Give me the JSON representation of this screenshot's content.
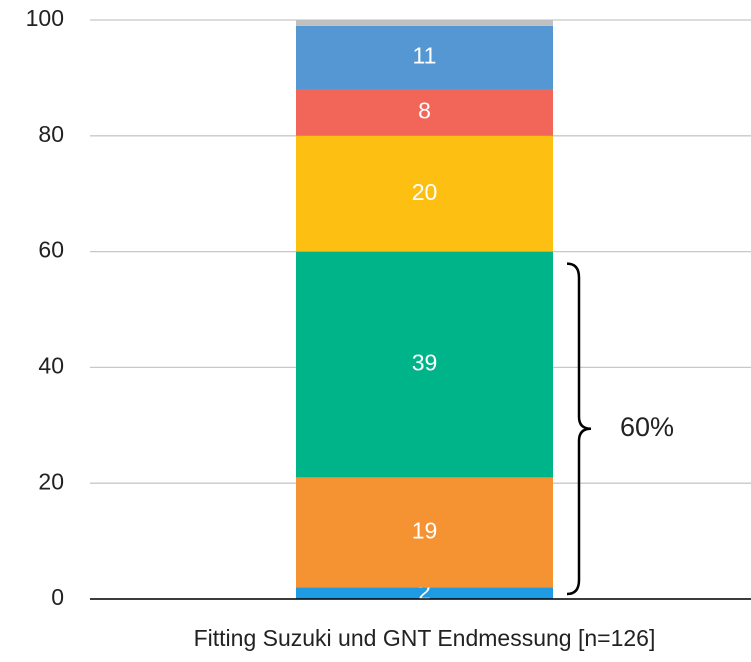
{
  "chart_data": {
    "type": "stacked_bar",
    "categories": [
      "Fitting Suzuki und GNT Endmessung [n=126]"
    ],
    "series": [
      {
        "color": "#1e9be3",
        "values": [
          2
        ]
      },
      {
        "color": "#f59333",
        "values": [
          19
        ]
      },
      {
        "color": "#00b48a",
        "values": [
          39
        ]
      },
      {
        "color": "#fcbf12",
        "values": [
          20
        ]
      },
      {
        "color": "#f2665a",
        "values": [
          8
        ]
      },
      {
        "color": "#5597d3",
        "values": [
          11
        ]
      },
      {
        "color": "#c0c0c0",
        "values": [
          1
        ]
      }
    ],
    "data_labels": [
      true,
      true,
      true,
      true,
      true,
      true,
      false
    ],
    "annotation": "60%",
    "ylim": [
      0,
      100
    ],
    "yticks": [
      0,
      20,
      40,
      60,
      80,
      100
    ],
    "grid": true
  }
}
